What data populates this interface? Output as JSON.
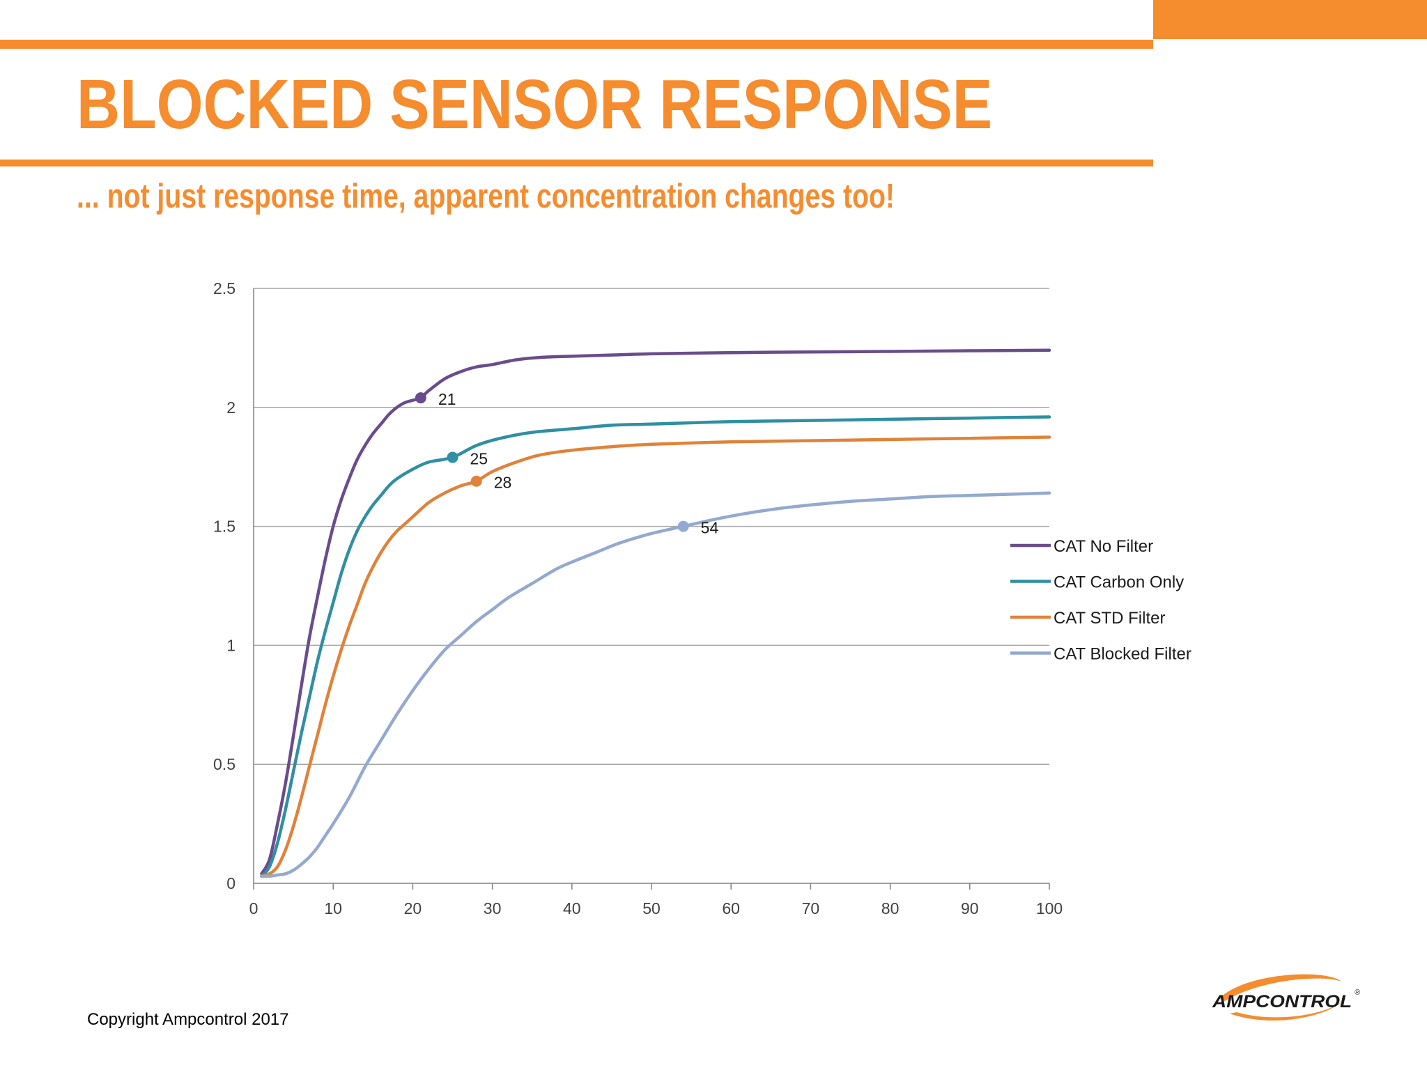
{
  "header": {
    "title": "BLOCKED SENSOR RESPONSE",
    "subtitle": "... not just response time, apparent concentration changes too!"
  },
  "footer": {
    "copyright": "Copyright Ampcontrol 2017",
    "logo_text": "AMPCONTROL",
    "logo_mark": "®"
  },
  "colors": {
    "accent": "#F58C2E",
    "grid": "#A6A6A6",
    "axis": "#808080",
    "text": "#404040"
  },
  "chart_data": {
    "type": "line",
    "title": "",
    "xlabel": "",
    "ylabel": "",
    "xlim": [
      0,
      100
    ],
    "ylim": [
      0,
      2.5
    ],
    "xticks": [
      0,
      10,
      20,
      30,
      40,
      50,
      60,
      70,
      80,
      90,
      100
    ],
    "yticks": [
      0,
      0.5,
      1,
      1.5,
      2,
      2.5
    ],
    "ytick_labels": [
      "0",
      "0.5",
      "1",
      "1.5",
      "2",
      "2.5"
    ],
    "grid": true,
    "legend_position": "right",
    "series": [
      {
        "name": "CAT No Filter",
        "color": "#6A4C8C",
        "x": [
          1,
          2,
          3,
          4,
          5,
          6,
          7,
          8,
          9,
          10,
          11,
          12,
          13,
          14,
          15,
          16,
          17,
          18,
          19,
          20,
          21,
          22,
          24,
          26,
          28,
          30,
          33,
          36,
          40,
          45,
          50,
          60,
          70,
          80,
          90,
          100
        ],
        "y": [
          0.04,
          0.1,
          0.25,
          0.42,
          0.62,
          0.83,
          1.03,
          1.2,
          1.36,
          1.5,
          1.61,
          1.7,
          1.78,
          1.84,
          1.89,
          1.93,
          1.97,
          2.0,
          2.02,
          2.03,
          2.04,
          2.07,
          2.12,
          2.15,
          2.17,
          2.18,
          2.2,
          2.21,
          2.215,
          2.22,
          2.225,
          2.23,
          2.233,
          2.235,
          2.238,
          2.24
        ],
        "marker": {
          "x": 21,
          "y": 2.04,
          "label": "21"
        }
      },
      {
        "name": "CAT Carbon Only",
        "color": "#2F8FA3",
        "x": [
          1,
          2,
          3,
          4,
          5,
          6,
          7,
          8,
          9,
          10,
          11,
          12,
          13,
          14,
          15,
          16,
          17,
          18,
          20,
          22,
          25,
          28,
          31,
          35,
          40,
          45,
          50,
          60,
          70,
          80,
          90,
          100
        ],
        "y": [
          0.03,
          0.07,
          0.17,
          0.31,
          0.47,
          0.63,
          0.78,
          0.93,
          1.06,
          1.18,
          1.3,
          1.4,
          1.48,
          1.54,
          1.59,
          1.63,
          1.67,
          1.7,
          1.74,
          1.77,
          1.79,
          1.84,
          1.87,
          1.895,
          1.91,
          1.925,
          1.93,
          1.94,
          1.945,
          1.95,
          1.955,
          1.96
        ],
        "marker": {
          "x": 25,
          "y": 1.79,
          "label": "25"
        }
      },
      {
        "name": "CAT STD Filter",
        "color": "#E0823A",
        "x": [
          1,
          2,
          3,
          4,
          5,
          6,
          7,
          8,
          9,
          10,
          11,
          12,
          13,
          14,
          15,
          16,
          17,
          18,
          19,
          20,
          22,
          24,
          26,
          28,
          30,
          33,
          36,
          40,
          45,
          50,
          60,
          70,
          80,
          90,
          100
        ],
        "y": [
          0.03,
          0.04,
          0.07,
          0.14,
          0.24,
          0.36,
          0.49,
          0.62,
          0.75,
          0.87,
          0.98,
          1.08,
          1.17,
          1.26,
          1.33,
          1.39,
          1.44,
          1.48,
          1.51,
          1.54,
          1.6,
          1.64,
          1.67,
          1.69,
          1.73,
          1.77,
          1.8,
          1.82,
          1.835,
          1.845,
          1.855,
          1.86,
          1.865,
          1.87,
          1.875
        ],
        "marker": {
          "x": 28,
          "y": 1.69,
          "label": "28"
        }
      },
      {
        "name": "CAT Blocked Filter",
        "color": "#93A9CF",
        "x": [
          1,
          2,
          3,
          4,
          5,
          6,
          7,
          8,
          9,
          10,
          12,
          14,
          16,
          18,
          20,
          22,
          24,
          26,
          28,
          30,
          32,
          35,
          38,
          40,
          43,
          46,
          50,
          54,
          58,
          62,
          66,
          70,
          75,
          80,
          85,
          90,
          95,
          100
        ],
        "y": [
          0.03,
          0.03,
          0.035,
          0.04,
          0.055,
          0.08,
          0.11,
          0.15,
          0.2,
          0.25,
          0.36,
          0.49,
          0.6,
          0.71,
          0.81,
          0.9,
          0.98,
          1.04,
          1.1,
          1.15,
          1.2,
          1.26,
          1.32,
          1.35,
          1.39,
          1.43,
          1.47,
          1.5,
          1.53,
          1.555,
          1.575,
          1.59,
          1.605,
          1.615,
          1.625,
          1.63,
          1.635,
          1.64
        ],
        "marker": {
          "x": 54,
          "y": 1.5,
          "label": "54"
        }
      }
    ]
  }
}
